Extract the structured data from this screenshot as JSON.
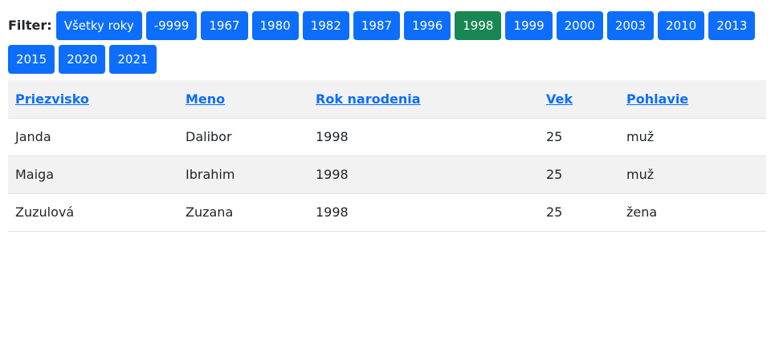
{
  "filter": {
    "label": "Filter:",
    "buttons": [
      {
        "label": "Všetky roky",
        "active": false
      },
      {
        "label": "-9999",
        "active": false
      },
      {
        "label": "1967",
        "active": false
      },
      {
        "label": "1980",
        "active": false
      },
      {
        "label": "1982",
        "active": false
      },
      {
        "label": "1987",
        "active": false
      },
      {
        "label": "1996",
        "active": false
      },
      {
        "label": "1998",
        "active": true
      },
      {
        "label": "1999",
        "active": false
      },
      {
        "label": "2000",
        "active": false
      },
      {
        "label": "2003",
        "active": false
      },
      {
        "label": "2010",
        "active": false
      },
      {
        "label": "2013",
        "active": false
      },
      {
        "label": "2015",
        "active": false
      },
      {
        "label": "2020",
        "active": false
      },
      {
        "label": "2021",
        "active": false
      }
    ]
  },
  "table": {
    "headers": [
      "Priezvisko",
      "Meno",
      "Rok narodenia",
      "Vek",
      "Pohlavie"
    ],
    "rows": [
      [
        "Janda",
        "Dalibor",
        "1998",
        "25",
        "muž"
      ],
      [
        "Maiga",
        "Ibrahim",
        "1998",
        "25",
        "muž"
      ],
      [
        "Zuzulová",
        "Zuzana",
        "1998",
        "25",
        "žena"
      ]
    ]
  },
  "colors": {
    "button": "#0d6efd",
    "button_active": "#198754",
    "link": "#0d6efd",
    "stripe": "#f2f2f2"
  }
}
